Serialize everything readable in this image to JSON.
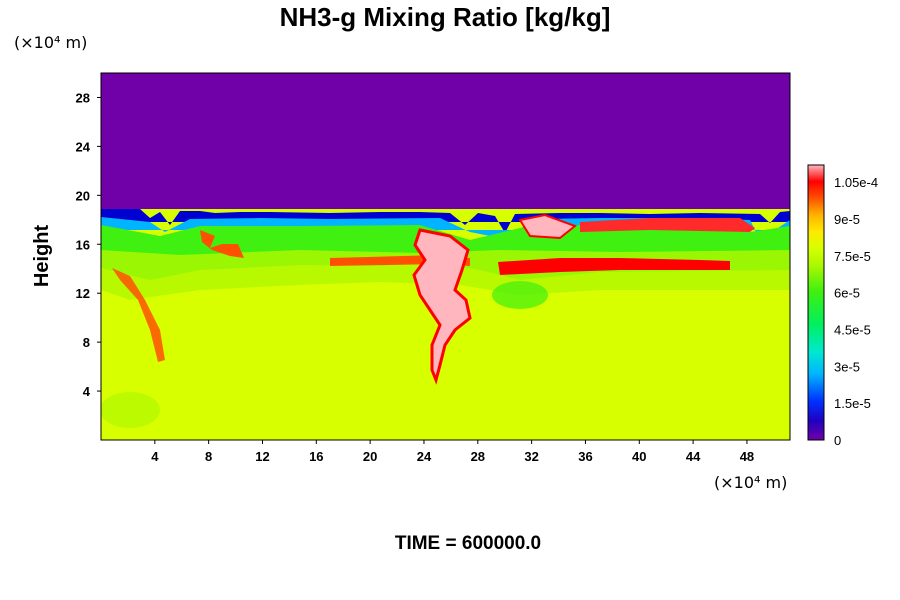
{
  "chart_data": {
    "type": "heatmap",
    "title": "NH3-g Mixing Ratio [kg/kg]",
    "ylabel": "Height",
    "x_unit": "(×10⁴ m)",
    "y_unit": "(×10⁴ m)",
    "footer": "TIME = 600000.0",
    "xlim": [
      0,
      51.2
    ],
    "ylim": [
      0,
      30
    ],
    "x_ticks": [
      4,
      8,
      12,
      16,
      20,
      24,
      28,
      32,
      36,
      40,
      44,
      48
    ],
    "y_ticks": [
      4,
      8,
      12,
      16,
      20,
      24,
      28
    ],
    "colorbar": {
      "vmin": 0,
      "vmax": 0.000112,
      "tick_values": [
        0,
        1.5e-05,
        3e-05,
        4.5e-05,
        6e-05,
        7.5e-05,
        9e-05,
        0.000105
      ],
      "tick_labels": [
        "0",
        "1.5e-5",
        "3e-5",
        "4.5e-5",
        "6e-5",
        "7.5e-5",
        "9e-5",
        "1.05e-4"
      ]
    },
    "field_summary": {
      "tropopause_height": 18.5,
      "above_tropopause_value": 0,
      "background_value": 7.8e-05,
      "mid_layer_value": 7e-05
    },
    "colors": {
      "low": "#7000a8",
      "background": "#d8ff00",
      "mid": "#8cf00a",
      "high": "#ff2a2a",
      "max": "#ffb6bf"
    }
  }
}
